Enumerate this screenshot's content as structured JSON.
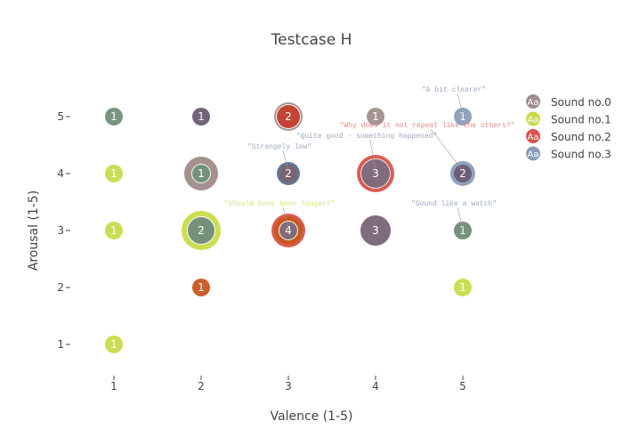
{
  "chart_data": {
    "type": "scatter",
    "title": "Testcase H",
    "xlabel": "Valence (1-5)",
    "ylabel": "Arousal (1-5)",
    "xlim": [
      0.5,
      5.5
    ],
    "ylim": [
      0.5,
      5.5
    ],
    "xticks": [
      "1",
      "2",
      "3",
      "4",
      "5"
    ],
    "yticks": [
      "1",
      "2",
      "3",
      "4",
      "5"
    ],
    "grid": false,
    "legend": {
      "placement": "top-right",
      "marker_text": "Aa",
      "entries": [
        {
          "name": "Sound no.0",
          "color": "#a08c8a"
        },
        {
          "name": "Sound no.1",
          "color": "#c8dc4a"
        },
        {
          "name": "Sound no.2",
          "color": "#d9534a"
        },
        {
          "name": "Sound no.3",
          "color": "#8a9db8"
        }
      ]
    },
    "bubbles": [
      {
        "x": 1,
        "y": 5,
        "label": "1",
        "layers": [
          {
            "size": 1,
            "color": "#728f78"
          }
        ]
      },
      {
        "x": 2,
        "y": 5,
        "label": "1",
        "layers": [
          {
            "size": 1,
            "color": "#6c5a73"
          }
        ]
      },
      {
        "x": 3,
        "y": 5,
        "label": "2",
        "layers": [
          {
            "size": 1.6,
            "color": "#a48f8c"
          },
          {
            "size": 1.4,
            "color": "#ffffff"
          },
          {
            "size": 1.3,
            "color": "#c0392b"
          }
        ]
      },
      {
        "x": 4,
        "y": 5,
        "label": "1",
        "layers": [
          {
            "size": 1,
            "color": "#a28f8c"
          }
        ]
      },
      {
        "x": 5,
        "y": 5,
        "label": "1",
        "layers": [
          {
            "size": 1,
            "color": "#8a9db8"
          }
        ]
      },
      {
        "x": 1,
        "y": 4,
        "label": "1",
        "layers": [
          {
            "size": 1,
            "color": "#c8dc4a"
          }
        ]
      },
      {
        "x": 2,
        "y": 4,
        "label": "1",
        "layers": [
          {
            "size": 1.9,
            "color": "#a08c8a"
          },
          {
            "size": 1.1,
            "color": "#ffffff"
          },
          {
            "size": 1,
            "color": "#6f8b73"
          }
        ]
      },
      {
        "x": 3,
        "y": 4,
        "label": "2",
        "layers": [
          {
            "size": 1.3,
            "color": "#5d6f8e"
          },
          {
            "size": 1,
            "color": "#7a6470"
          }
        ]
      },
      {
        "x": 4,
        "y": 4,
        "label": "3",
        "layers": [
          {
            "size": 2.1,
            "color": "#d9534a"
          },
          {
            "size": 1.7,
            "color": "#f0e6e6"
          },
          {
            "size": 1.6,
            "color": "#7a6478"
          }
        ]
      },
      {
        "x": 5,
        "y": 4,
        "label": "2",
        "layers": [
          {
            "size": 1.4,
            "color": "#8a9db8"
          },
          {
            "size": 1,
            "color": "#6e5b75"
          }
        ]
      },
      {
        "x": 1,
        "y": 3,
        "label": "1",
        "layers": [
          {
            "size": 1,
            "color": "#c8dc4a"
          }
        ]
      },
      {
        "x": 2,
        "y": 3,
        "label": "2",
        "layers": [
          {
            "size": 2.2,
            "color": "#c8dc4a"
          },
          {
            "size": 1.6,
            "color": "#ffffff"
          },
          {
            "size": 1.5,
            "color": "#6f8b73"
          }
        ]
      },
      {
        "x": 3,
        "y": 3,
        "label": "4",
        "layers": [
          {
            "size": 1.9,
            "color": "#d9534a"
          },
          {
            "size": 1.6,
            "color": "#c8561e"
          },
          {
            "size": 1.1,
            "color": "#ffffff"
          },
          {
            "size": 1,
            "color": "#7a6470"
          }
        ]
      },
      {
        "x": 4,
        "y": 3,
        "label": "3",
        "layers": [
          {
            "size": 1.7,
            "color": "#7a6478"
          }
        ]
      },
      {
        "x": 5,
        "y": 3,
        "label": "1",
        "layers": [
          {
            "size": 1,
            "color": "#6f8b73"
          }
        ]
      },
      {
        "x": 2,
        "y": 2,
        "label": "1",
        "layers": [
          {
            "size": 1,
            "color": "#c8561e"
          }
        ]
      },
      {
        "x": 5,
        "y": 2,
        "label": "1",
        "layers": [
          {
            "size": 1,
            "color": "#c8dc4a"
          }
        ]
      },
      {
        "x": 1,
        "y": 1,
        "label": "1",
        "layers": [
          {
            "size": 1,
            "color": "#c8dc4a"
          }
        ]
      }
    ],
    "annotations": [
      {
        "text": "\"A bit clearer\"",
        "x": 5,
        "y": 5,
        "color": "#9aa8bf"
      },
      {
        "text": "\"Strangely low\"",
        "x": 3,
        "y": 4,
        "color": "#9aa8bf"
      },
      {
        "text": "\"Quite good - something happened\"",
        "x": 4,
        "y": 4,
        "color": "#9aa8bf"
      },
      {
        "text": "\"Why does it not repeat like the others?\"",
        "x": 5,
        "y": 4,
        "color": "#e08a80"
      },
      {
        "text": "\"Should have been longer?\"",
        "x": 3,
        "y": 3,
        "color": "#d4e07a"
      },
      {
        "text": "\"Sound like a watch\"",
        "x": 5,
        "y": 3,
        "color": "#9aa8bf"
      }
    ]
  }
}
